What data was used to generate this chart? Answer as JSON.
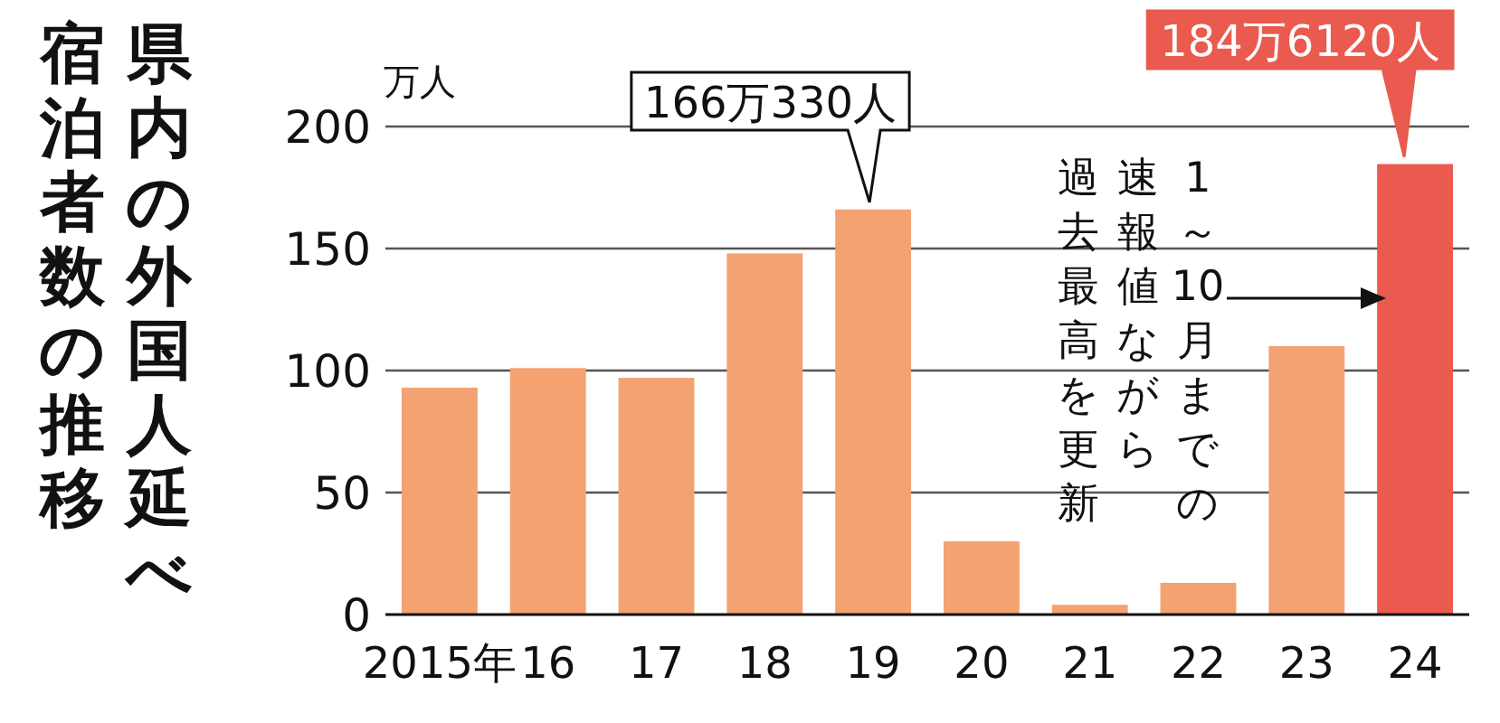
{
  "chart_data": {
    "type": "bar",
    "title": "県内の外国人延べ",
    "subtitle": "宿泊者数の推移",
    "ylabel": "万人",
    "categories": [
      "2015年",
      "16",
      "17",
      "18",
      "19",
      "20",
      "21",
      "22",
      "23",
      "24"
    ],
    "values": [
      93,
      101,
      97,
      148,
      166.033,
      30,
      4,
      13,
      110,
      184.612
    ],
    "colors": [
      "#f4a271",
      "#f4a271",
      "#f4a271",
      "#f4a271",
      "#f4a271",
      "#f4a271",
      "#f4a271",
      "#f4a271",
      "#f4a271",
      "#ea5a4e"
    ],
    "ylim": [
      0,
      200
    ],
    "yticks": [
      0,
      50,
      100,
      150,
      200
    ],
    "grid": "y",
    "annotations": [
      {
        "text": "166万330人",
        "x": "19",
        "y": 166.033
      },
      {
        "text": "184万6120人",
        "x": "24",
        "y": 184.612
      },
      "1～10月までの",
      "速報値ながら",
      "過去最高を更新"
    ]
  }
}
